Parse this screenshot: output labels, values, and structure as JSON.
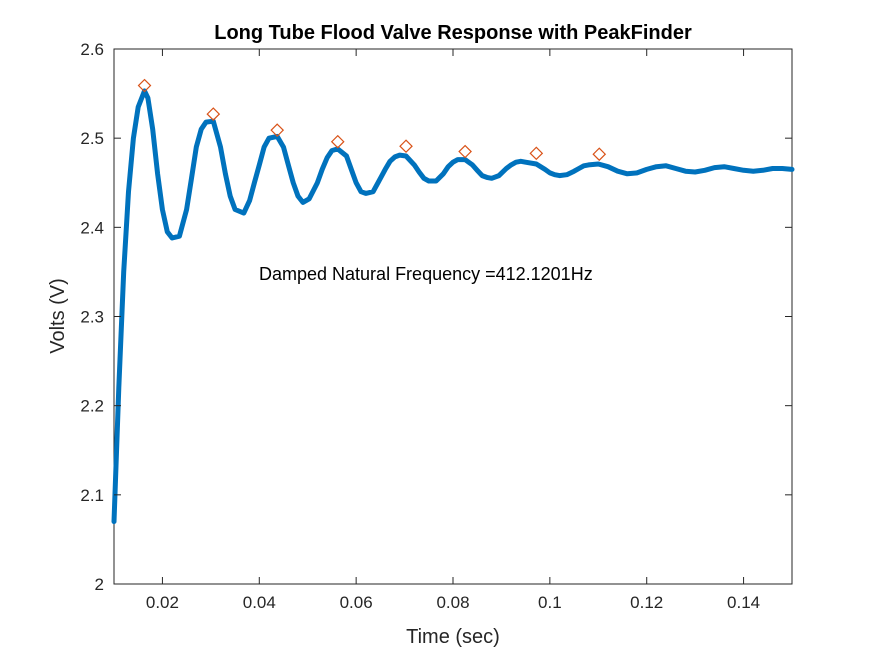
{
  "chart_data": {
    "type": "line",
    "title": "Long Tube Flood Valve Response with PeakFinder",
    "xlabel": "Time (sec)",
    "ylabel": "Volts (V)",
    "xlim": [
      0.01,
      0.15
    ],
    "ylim": [
      2.0,
      2.6
    ],
    "xticks": [
      0.02,
      0.04,
      0.06,
      0.08,
      0.1,
      0.12,
      0.14
    ],
    "xtick_labels": [
      "0.02",
      "0.04",
      "0.06",
      "0.08",
      "0.1",
      "0.12",
      "0.14"
    ],
    "yticks": [
      2.0,
      2.1,
      2.2,
      2.3,
      2.4,
      2.5,
      2.6
    ],
    "ytick_labels": [
      "2",
      "2.1",
      "2.2",
      "2.3",
      "2.4",
      "2.5",
      "2.6"
    ],
    "grid": false,
    "annotation": "Damped Natural Frequency =412.1201Hz",
    "series": [
      {
        "color": "#0072BD",
        "x": [
          0.01,
          0.011,
          0.012,
          0.013,
          0.014,
          0.015,
          0.0163,
          0.017,
          0.018,
          0.019,
          0.02,
          0.021,
          0.022,
          0.0235,
          0.025,
          0.026,
          0.027,
          0.028,
          0.029,
          0.0305,
          0.032,
          0.033,
          0.034,
          0.035,
          0.0368,
          0.038,
          0.039,
          0.04,
          0.041,
          0.042,
          0.0437,
          0.045,
          0.046,
          0.047,
          0.048,
          0.049,
          0.0503,
          0.052,
          0.053,
          0.054,
          0.055,
          0.0562,
          0.058,
          0.059,
          0.06,
          0.061,
          0.062,
          0.0635,
          0.065,
          0.066,
          0.067,
          0.068,
          0.069,
          0.0703,
          0.072,
          0.073,
          0.074,
          0.075,
          0.0765,
          0.078,
          0.079,
          0.08,
          0.081,
          0.0825,
          0.084,
          0.085,
          0.086,
          0.087,
          0.088,
          0.0895,
          0.091,
          0.092,
          0.093,
          0.094,
          0.095,
          0.0972,
          0.099,
          0.1,
          0.101,
          0.102,
          0.1035,
          0.105,
          0.106,
          0.107,
          0.108,
          0.11,
          0.112,
          0.114,
          0.116,
          0.118,
          0.12,
          0.122,
          0.124,
          0.126,
          0.128,
          0.13,
          0.132,
          0.134,
          0.136,
          0.138,
          0.14,
          0.142,
          0.144,
          0.146,
          0.148,
          0.15
        ],
        "y": [
          2.07,
          2.22,
          2.35,
          2.44,
          2.5,
          2.535,
          2.553,
          2.545,
          2.51,
          2.46,
          2.42,
          2.395,
          2.388,
          2.39,
          2.42,
          2.455,
          2.49,
          2.51,
          2.518,
          2.519,
          2.49,
          2.46,
          2.435,
          2.42,
          2.416,
          2.43,
          2.45,
          2.47,
          2.49,
          2.5,
          2.502,
          2.49,
          2.47,
          2.45,
          2.435,
          2.428,
          2.432,
          2.45,
          2.465,
          2.478,
          2.486,
          2.488,
          2.48,
          2.465,
          2.45,
          2.44,
          2.438,
          2.44,
          2.455,
          2.465,
          2.474,
          2.479,
          2.481,
          2.48,
          2.47,
          2.462,
          2.455,
          2.452,
          2.452,
          2.46,
          2.468,
          2.473,
          2.476,
          2.476,
          2.47,
          2.464,
          2.458,
          2.456,
          2.455,
          2.458,
          2.466,
          2.47,
          2.473,
          2.474,
          2.473,
          2.471,
          2.465,
          2.461,
          2.459,
          2.458,
          2.459,
          2.463,
          2.466,
          2.469,
          2.47,
          2.471,
          2.468,
          2.463,
          2.46,
          2.461,
          2.465,
          2.468,
          2.469,
          2.466,
          2.463,
          2.462,
          2.464,
          2.467,
          2.468,
          2.466,
          2.464,
          2.463,
          2.464,
          2.466,
          2.466,
          2.465
        ]
      }
    ],
    "peaks": {
      "marker": "diamond",
      "color": "#D95319",
      "x": [
        0.0163,
        0.0305,
        0.0437,
        0.0562,
        0.0703,
        0.0825,
        0.0972,
        0.1102
      ],
      "y": [
        2.559,
        2.527,
        2.509,
        2.496,
        2.491,
        2.485,
        2.483,
        2.482
      ]
    }
  }
}
